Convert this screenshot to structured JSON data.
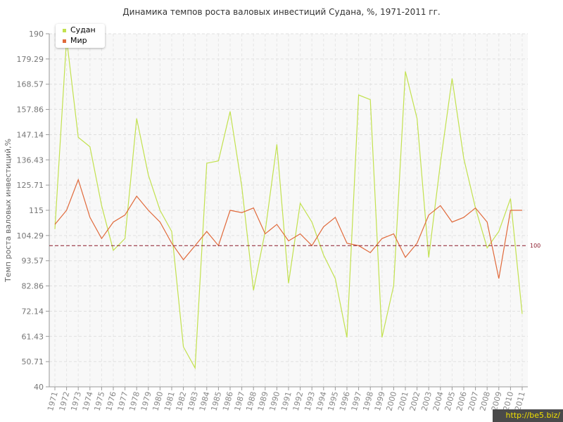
{
  "chart_data": {
    "type": "line",
    "title": "Динамика темпов роста валовых инвестиций Судана, %, 1971-2011 гг.",
    "xlabel": "",
    "ylabel": "Темп роста валовых инвестиций,%",
    "ylim": [
      40,
      190
    ],
    "yticks": [
      "40",
      "50.71",
      "61.43",
      "72.14",
      "82.86",
      "93.57",
      "104.29",
      "115",
      "125.71",
      "136.43",
      "147.14",
      "157.86",
      "168.57",
      "179.29",
      "190"
    ],
    "ytick_values": [
      40,
      50.71,
      61.43,
      72.14,
      82.86,
      93.57,
      104.29,
      115,
      125.71,
      136.43,
      147.14,
      157.86,
      168.57,
      179.29,
      190
    ],
    "x": [
      "1971",
      "1972",
      "1973",
      "1974",
      "1975",
      "1976",
      "1977",
      "1978",
      "1979",
      "1980",
      "1981",
      "1982",
      "1983",
      "1984",
      "1985",
      "1986",
      "1987",
      "1988",
      "1989",
      "1990",
      "1991",
      "1992",
      "1993",
      "1994",
      "1995",
      "1996",
      "1997",
      "1998",
      "1999",
      "2000",
      "2001",
      "2002",
      "2003",
      "2004",
      "2005",
      "2006",
      "2007",
      "2008",
      "2009",
      "2010",
      "2011"
    ],
    "series": [
      {
        "name": "Судан",
        "color": "#c2e14e",
        "values": [
          107,
          188,
          146,
          142,
          117,
          98,
          103,
          154,
          130,
          115,
          106,
          57,
          48,
          135,
          136,
          157,
          125,
          81,
          106,
          143,
          84,
          118,
          110,
          96,
          86,
          61,
          164,
          162,
          61,
          83,
          174,
          154,
          95,
          135,
          171,
          137,
          116,
          99,
          106,
          120,
          71
        ]
      },
      {
        "name": "Мир",
        "color": "#e0693a",
        "values": [
          109,
          115,
          128,
          112,
          103,
          110,
          113,
          121,
          115,
          110,
          101,
          94,
          100,
          106,
          100,
          115,
          114,
          116,
          105,
          109,
          102,
          105,
          100,
          108,
          112,
          101,
          100,
          97,
          103,
          105,
          95,
          101,
          113,
          117,
          110,
          112,
          116,
          110,
          86,
          115,
          115
        ]
      }
    ],
    "reference_line": {
      "value": 100,
      "label": "100",
      "color": "#8b1a2b"
    },
    "legend": "top-left",
    "grid": true
  },
  "watermark": "http://be5.biz/"
}
